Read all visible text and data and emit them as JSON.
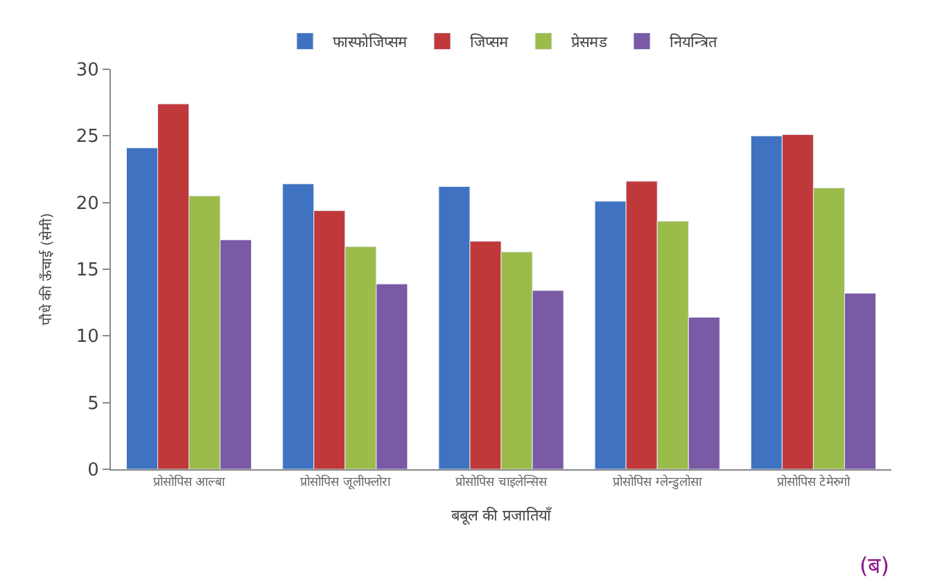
{
  "chart_data": {
    "type": "bar",
    "xlabel": "बबूल की प्रजातियाँ",
    "ylabel": "पौधे की ऊँचाई (सेमी)",
    "categories": [
      "प्रोसोपिस आल्बा",
      "प्रोसोपिस जूलीफ्लोरा",
      "प्रोसोपिस चाइलेन्सिस",
      "प्रोसोपिस ग्लेन्डुलोसा",
      "प्रोसोपिस टेमेरुगो"
    ],
    "series": [
      {
        "name": "फास्फोजिप्सम",
        "color": "#3f72c0",
        "values": [
          24.1,
          21.4,
          21.2,
          20.1,
          25.0
        ]
      },
      {
        "name": "जिप्सम",
        "color": "#c0393a",
        "values": [
          27.4,
          19.4,
          17.1,
          21.6,
          25.1
        ]
      },
      {
        "name": "प्रेसमड",
        "color": "#9bbb4b",
        "values": [
          20.5,
          16.7,
          16.3,
          18.6,
          21.1
        ]
      },
      {
        "name": "नियन्त्रित",
        "color": "#7a59a5",
        "values": [
          17.2,
          13.9,
          13.4,
          11.4,
          13.2
        ]
      }
    ],
    "ylim": [
      0,
      30
    ],
    "yticks": [
      0,
      5,
      10,
      15,
      20,
      25,
      30
    ],
    "legend": "top",
    "annotations": [
      "(ब)"
    ]
  }
}
